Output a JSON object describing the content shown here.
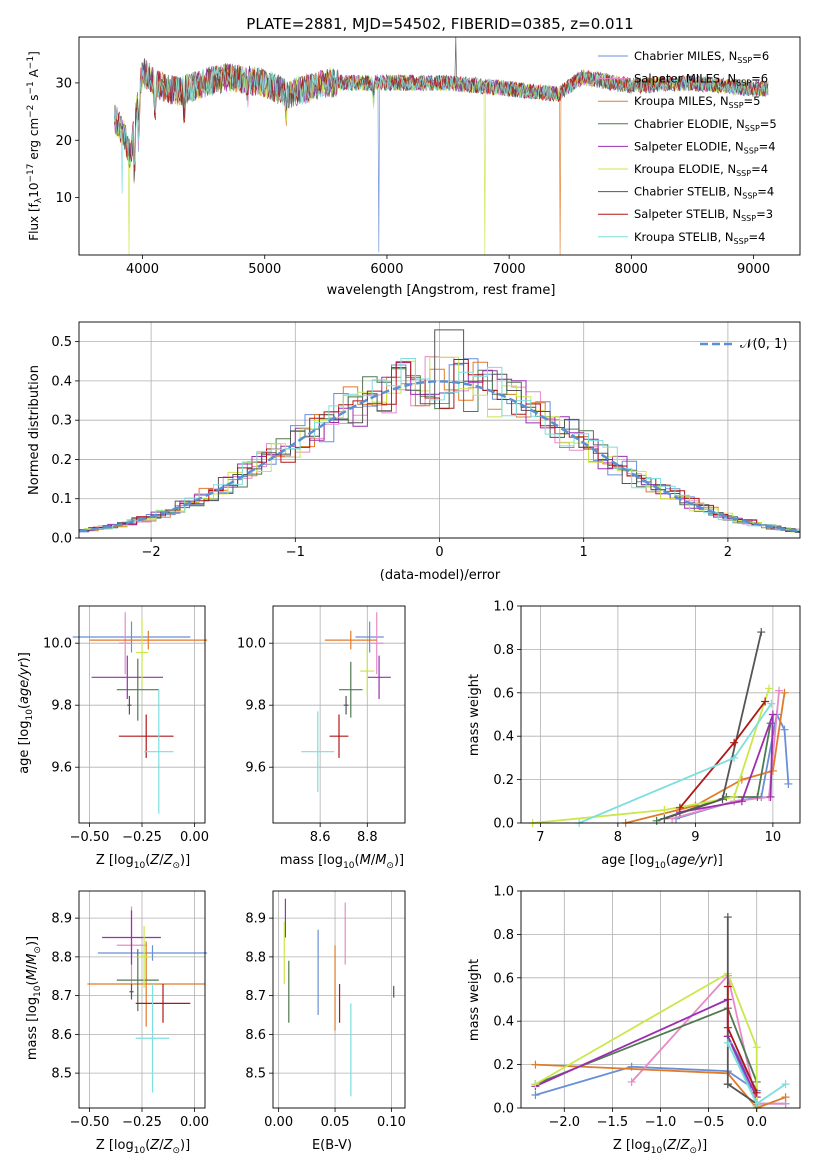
{
  "chart_data": [
    {
      "type": "line",
      "title": "PLATE=2881, MJD=54502, FIBERID=0385, z=0.011",
      "xlabel": "wavelength [Angstrom, rest frame]",
      "ylabel": "Flux [fλ10⁻¹⁷ erg cm⁻² s⁻¹ A⁻¹]",
      "xlim": [
        3480,
        9380
      ],
      "ylim": [
        0,
        38
      ],
      "xticks": [
        "4000",
        "5000",
        "6000",
        "7000",
        "8000",
        "9000"
      ],
      "yticks": [
        "10",
        "20",
        "30"
      ],
      "grid": false,
      "legend_position": "top-right",
      "x_range": [
        3770,
        9120
      ],
      "series": [
        {
          "name": "Chabrier MILES, N_SSP=6",
          "color": "#6a8fd8"
        },
        {
          "name": "Salpeter MILES, N_SSP=6",
          "color": "#e88ac8"
        },
        {
          "name": "Kroupa MILES, N_SSP=5",
          "color": "#e07b2a"
        },
        {
          "name": "Chabrier ELODIE, N_SSP=5",
          "color": "#4f7a4f"
        },
        {
          "name": "Salpeter ELODIE, N_SSP=4",
          "color": "#9b2fb0"
        },
        {
          "name": "Kroupa ELODIE, N_SSP=4",
          "color": "#c9e84a"
        },
        {
          "name": "Chabrier STELIB, N_SSP=4",
          "color": "#555555"
        },
        {
          "name": "Salpeter STELIB, N_SSP=3",
          "color": "#b01818"
        },
        {
          "name": "Kroupa STELIB, N_SSP=4",
          "color": "#7fdede"
        }
      ],
      "spectrum": [
        [
          3770,
          24
        ],
        [
          3850,
          21
        ],
        [
          3900,
          17
        ],
        [
          3950,
          25
        ],
        [
          4000,
          32
        ],
        [
          4100,
          30
        ],
        [
          4200,
          29
        ],
        [
          4300,
          28.5
        ],
        [
          4500,
          30
        ],
        [
          4700,
          31
        ],
        [
          5000,
          30
        ],
        [
          5200,
          28
        ],
        [
          5500,
          30
        ],
        [
          6000,
          30
        ],
        [
          6500,
          30
        ],
        [
          7000,
          29
        ],
        [
          7400,
          28
        ],
        [
          7600,
          31
        ],
        [
          8000,
          29.5
        ],
        [
          8500,
          30
        ],
        [
          9000,
          29
        ],
        [
          9120,
          29
        ]
      ]
    },
    {
      "type": "bar",
      "xlabel": "(data-model)/error",
      "ylabel": "Normed distribution",
      "xlim": [
        -2.5,
        2.5
      ],
      "ylim": [
        0,
        0.55
      ],
      "xticks": [
        "−2",
        "−1",
        "0",
        "1",
        "2"
      ],
      "yticks": [
        "0.0",
        "0.1",
        "0.2",
        "0.3",
        "0.4",
        "0.5"
      ],
      "grid": true,
      "legend_position": "top-right",
      "legend": "𝒩(0, 1)",
      "bin_width": 0.1,
      "gauss_color": "#5b8fd4"
    },
    {
      "type": "scatter",
      "xlabel": "Z [log₁₀(Z/Z⊙)]",
      "ylabel": "age  [log₁₀(age/yr)]",
      "xlim": [
        -0.55,
        0.05
      ],
      "ylim": [
        9.42,
        10.12
      ],
      "xticks": [
        "−0.50",
        "−0.25",
        "0.00"
      ],
      "yticks": [
        "9.6",
        "9.8",
        "10.0"
      ],
      "grid": true,
      "points": [
        {
          "x": -0.3,
          "y": 10.02,
          "xerr": 0.28,
          "yerr": 0.05,
          "color": "#6a8fd8"
        },
        {
          "x": -0.33,
          "y": 10.0,
          "xerr": 0.03,
          "yerr": 0.1,
          "color": "#e88ac8"
        },
        {
          "x": -0.22,
          "y": 10.01,
          "xerr": 0.28,
          "yerr": 0.03,
          "color": "#e07b2a"
        },
        {
          "x": -0.27,
          "y": 9.85,
          "xerr": 0.1,
          "yerr": 0.1,
          "color": "#4f7a4f"
        },
        {
          "x": -0.32,
          "y": 9.89,
          "xerr": 0.17,
          "yerr": 0.07,
          "color": "#9b2fb0"
        },
        {
          "x": -0.25,
          "y": 9.97,
          "xerr": 0.03,
          "yerr": 0.11,
          "color": "#c9e84a"
        },
        {
          "x": -0.31,
          "y": 9.8,
          "xerr": 0.01,
          "yerr": 0.03,
          "color": "#555555"
        },
        {
          "x": -0.23,
          "y": 9.7,
          "xerr": 0.13,
          "yerr": 0.07,
          "color": "#b01818"
        },
        {
          "x": -0.17,
          "y": 9.65,
          "xerr": 0.07,
          "yerr": 0.2,
          "color": "#7fdede"
        }
      ]
    },
    {
      "type": "scatter",
      "xlabel": "mass [log₁₀(M/M⊙)]",
      "ylabel": "",
      "xlim": [
        8.4,
        8.96
      ],
      "ylim": [
        9.42,
        10.12
      ],
      "xticks": [
        "8.6",
        "8.8"
      ],
      "yticks": [
        "9.6",
        "9.8",
        "10.0"
      ],
      "grid": true,
      "points": [
        {
          "x": 8.81,
          "y": 10.02,
          "xerr": 0.06,
          "yerr": 0.05,
          "color": "#6a8fd8"
        },
        {
          "x": 8.84,
          "y": 10.0,
          "xerr": 0.03,
          "yerr": 0.1,
          "color": "#e88ac8"
        },
        {
          "x": 8.73,
          "y": 10.01,
          "xerr": 0.11,
          "yerr": 0.03,
          "color": "#e07b2a"
        },
        {
          "x": 8.73,
          "y": 9.85,
          "xerr": 0.05,
          "yerr": 0.09,
          "color": "#4f7a4f"
        },
        {
          "x": 8.85,
          "y": 9.89,
          "xerr": 0.05,
          "yerr": 0.07,
          "color": "#9b2fb0"
        },
        {
          "x": 8.8,
          "y": 9.91,
          "xerr": 0.03,
          "yerr": 0.08,
          "color": "#c9e84a"
        },
        {
          "x": 8.71,
          "y": 9.8,
          "xerr": 0.01,
          "yerr": 0.03,
          "color": "#555555"
        },
        {
          "x": 8.68,
          "y": 9.7,
          "xerr": 0.04,
          "yerr": 0.07,
          "color": "#b01818"
        },
        {
          "x": 8.59,
          "y": 9.65,
          "xerr": 0.07,
          "yerr": 0.13,
          "color": "#7fdede"
        }
      ]
    },
    {
      "type": "line",
      "xlabel": "age  [log₁₀(age/yr)]",
      "ylabel": "mass weight",
      "xlim": [
        6.75,
        10.35
      ],
      "ylim": [
        0,
        1.0
      ],
      "xticks": [
        "7",
        "8",
        "9",
        "10"
      ],
      "yticks": [
        "0.0",
        "0.2",
        "0.4",
        "0.6",
        "0.8",
        "1.0"
      ],
      "grid": true,
      "series": [
        {
          "color": "#6a8fd8",
          "x": [
            8.75,
            9.5,
            9.85,
            10.05,
            10.15,
            10.2
          ],
          "y": [
            0.02,
            0.1,
            0.12,
            0.5,
            0.43,
            0.18
          ]
        },
        {
          "color": "#e88ac8",
          "x": [
            8.7,
            9.5,
            9.95,
            10.08
          ],
          "y": [
            0.02,
            0.1,
            0.12,
            0.61
          ]
        },
        {
          "color": "#e07b2a",
          "x": [
            8.1,
            9.0,
            9.6,
            10.0,
            10.15
          ],
          "y": [
            0.0,
            0.08,
            0.2,
            0.24,
            0.6
          ]
        },
        {
          "color": "#4f7a4f",
          "x": [
            8.5,
            9.4,
            9.8,
            9.97
          ],
          "y": [
            0.01,
            0.12,
            0.12,
            0.46
          ]
        },
        {
          "color": "#9b2fb0",
          "x": [
            8.8,
            9.6,
            10.0,
            9.97
          ],
          "y": [
            0.05,
            0.1,
            0.5,
            0.12
          ]
        },
        {
          "color": "#c9e84a",
          "x": [
            6.9,
            8.6,
            9.5,
            9.95
          ],
          "y": [
            0.0,
            0.06,
            0.12,
            0.62
          ]
        },
        {
          "color": "#555555",
          "x": [
            8.6,
            9.35,
            9.85
          ],
          "y": [
            0.02,
            0.11,
            0.88
          ]
        },
        {
          "color": "#b01818",
          "x": [
            8.8,
            9.5,
            9.9
          ],
          "y": [
            0.07,
            0.37,
            0.56
          ]
        },
        {
          "color": "#7fdede",
          "x": [
            7.5,
            9.5,
            9.98
          ],
          "y": [
            0.0,
            0.3,
            0.55
          ]
        }
      ]
    },
    {
      "type": "scatter",
      "xlabel": "Z [log₁₀(Z/Z⊙)]",
      "ylabel": "mass [log₁₀(M/M⊙)]",
      "xlim": [
        -0.55,
        0.05
      ],
      "ylim": [
        8.41,
        8.97
      ],
      "xticks": [
        "−0.50",
        "−0.25",
        "0.00"
      ],
      "yticks": [
        "8.5",
        "8.6",
        "8.7",
        "8.8",
        "8.9"
      ],
      "grid": true,
      "points": [
        {
          "x": -0.2,
          "y": 8.81,
          "xerr": 0.26,
          "yerr": 0.02,
          "color": "#6a8fd8"
        },
        {
          "x": -0.3,
          "y": 8.83,
          "xerr": 0.07,
          "yerr": 0.1,
          "color": "#e88ac8"
        },
        {
          "x": -0.23,
          "y": 8.73,
          "xerr": 0.28,
          "yerr": 0.11,
          "color": "#e07b2a"
        },
        {
          "x": -0.27,
          "y": 8.74,
          "xerr": 0.1,
          "yerr": 0.08,
          "color": "#4f7a4f"
        },
        {
          "x": -0.3,
          "y": 8.85,
          "xerr": 0.14,
          "yerr": 0.07,
          "color": "#9b2fb0"
        },
        {
          "x": -0.24,
          "y": 8.8,
          "xerr": 0.03,
          "yerr": 0.08,
          "color": "#c9e84a"
        },
        {
          "x": -0.3,
          "y": 8.71,
          "xerr": 0.01,
          "yerr": 0.02,
          "color": "#555555"
        },
        {
          "x": -0.15,
          "y": 8.68,
          "xerr": 0.13,
          "yerr": 0.05,
          "color": "#b01818"
        },
        {
          "x": -0.2,
          "y": 8.59,
          "xerr": 0.08,
          "yerr": 0.14,
          "color": "#7fdede"
        }
      ]
    },
    {
      "type": "scatter",
      "xlabel": "E(B-V)",
      "ylabel": "",
      "xlim": [
        -0.005,
        0.112
      ],
      "ylim": [
        8.41,
        8.97
      ],
      "xticks": [
        "0.00",
        "0.05",
        "0.10"
      ],
      "yticks": [
        "8.5",
        "8.6",
        "8.7",
        "8.8",
        "8.9"
      ],
      "grid": true,
      "points": [
        {
          "x": 0.035,
          "y": 8.76,
          "xerr": 0.0,
          "yerr": 0.11,
          "color": "#6a8fd8"
        },
        {
          "x": 0.059,
          "y": 8.86,
          "xerr": 0.0,
          "yerr": 0.08,
          "color": "#e88ac8"
        },
        {
          "x": 0.05,
          "y": 8.72,
          "xerr": 0.0,
          "yerr": 0.11,
          "color": "#e07b2a"
        },
        {
          "x": 0.009,
          "y": 8.71,
          "xerr": 0.0,
          "yerr": 0.08,
          "color": "#4f7a4f"
        },
        {
          "x": 0.006,
          "y": 8.9,
          "xerr": 0.0,
          "yerr": 0.05,
          "color": "#9b2fb0"
        },
        {
          "x": 0.005,
          "y": 8.81,
          "xerr": 0.0,
          "yerr": 0.08,
          "color": "#c9e84a"
        },
        {
          "x": 0.102,
          "y": 8.71,
          "xerr": 0.0,
          "yerr": 0.015,
          "color": "#555555"
        },
        {
          "x": 0.054,
          "y": 8.68,
          "xerr": 0.0,
          "yerr": 0.05,
          "color": "#b01818"
        },
        {
          "x": 0.064,
          "y": 8.56,
          "xerr": 0.0,
          "yerr": 0.12,
          "color": "#7fdede"
        }
      ]
    },
    {
      "type": "line",
      "xlabel": "Z [log₁₀(Z/Z⊙)]",
      "ylabel": "mass weight",
      "xlim": [
        -2.45,
        0.45
      ],
      "ylim": [
        0,
        1.0
      ],
      "xticks": [
        "−2.0",
        "−1.5",
        "−1.0",
        "−0.5",
        "0.0"
      ],
      "yticks": [
        "0.0",
        "0.2",
        "0.4",
        "0.6",
        "0.8",
        "1.0"
      ],
      "grid": true,
      "series": [
        {
          "color": "#6a8fd8",
          "x": [
            -2.3,
            -1.3,
            -0.3,
            0.0,
            -0.3,
            0.0,
            0.3
          ],
          "y": [
            0.06,
            0.19,
            0.17,
            0.08,
            0.33,
            0.02,
            0.02
          ]
        },
        {
          "color": "#e88ac8",
          "x": [
            -1.3,
            -0.3,
            0.0,
            0.3
          ],
          "y": [
            0.12,
            0.61,
            0.02,
            0.02
          ]
        },
        {
          "color": "#e07b2a",
          "x": [
            -2.3,
            -0.3,
            0.0,
            0.3
          ],
          "y": [
            0.2,
            0.16,
            0.0,
            0.05
          ]
        },
        {
          "color": "#4f7a4f",
          "x": [
            -2.3,
            -0.3,
            0.0,
            0.0
          ],
          "y": [
            0.11,
            0.46,
            0.12,
            0.01
          ]
        },
        {
          "color": "#9b2fb0",
          "x": [
            -2.3,
            -0.3,
            -0.3,
            0.0
          ],
          "y": [
            0.1,
            0.5,
            0.33,
            0.05
          ]
        },
        {
          "color": "#c9e84a",
          "x": [
            -2.3,
            -0.3,
            0.0,
            0.0
          ],
          "y": [
            0.11,
            0.62,
            0.28,
            0.01
          ]
        },
        {
          "color": "#555555",
          "x": [
            -0.3,
            -0.3,
            -0.3,
            0.0
          ],
          "y": [
            0.88,
            0.11,
            0.11,
            0.02
          ]
        },
        {
          "color": "#b01818",
          "x": [
            -0.3,
            -0.3,
            0.0
          ],
          "y": [
            0.56,
            0.37,
            0.07
          ]
        },
        {
          "color": "#7fdede",
          "x": [
            -0.3,
            0.0,
            0.3
          ],
          "y": [
            0.3,
            0.02,
            0.11
          ]
        }
      ]
    }
  ]
}
